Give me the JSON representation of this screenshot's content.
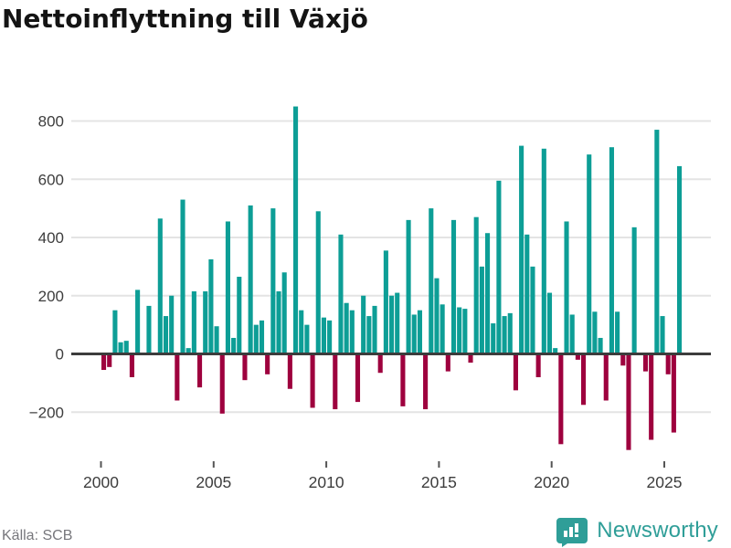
{
  "title": "Nettoinflyttning till Växjö",
  "footer": {
    "source": "Källa: SCB",
    "brand": "Newsworthy"
  },
  "colors": {
    "positive_bar": "#0d9e96",
    "negative_bar": "#9e013e",
    "zero_line": "#3c3c3c",
    "gridline": "#e4e4e4",
    "axis_text": "#3d3d3d",
    "title_text": "#141414",
    "source_text": "#77777c",
    "brand_teal": "#2f9e98"
  },
  "chart_data": {
    "type": "bar",
    "title": "Nettoinflyttning till Växjö",
    "xlabel": "",
    "ylabel": "",
    "grid": true,
    "legend": "none",
    "y_ticks": [
      800,
      600,
      400,
      200,
      0,
      -200
    ],
    "ylim": [
      -350,
      880
    ],
    "x_tick_labels": [
      "2000",
      "2005",
      "2010",
      "2015",
      "2020",
      "2025"
    ],
    "categories": [
      "2000 Q1",
      "2000 Q2",
      "2000 Q3",
      "2000 Q4",
      "2001 Q1",
      "2001 Q2",
      "2001 Q3",
      "2001 Q4",
      "2002 Q1",
      "2002 Q2",
      "2002 Q3",
      "2002 Q4",
      "2003 Q1",
      "2003 Q2",
      "2003 Q3",
      "2003 Q4",
      "2004 Q1",
      "2004 Q2",
      "2004 Q3",
      "2004 Q4",
      "2005 Q1",
      "2005 Q2",
      "2005 Q3",
      "2005 Q4",
      "2006 Q1",
      "2006 Q2",
      "2006 Q3",
      "2006 Q4",
      "2007 Q1",
      "2007 Q2",
      "2007 Q3",
      "2007 Q4",
      "2008 Q1",
      "2008 Q2",
      "2008 Q3",
      "2008 Q4",
      "2009 Q1",
      "2009 Q2",
      "2009 Q3",
      "2009 Q4",
      "2010 Q1",
      "2010 Q2",
      "2010 Q3",
      "2010 Q4",
      "2011 Q1",
      "2011 Q2",
      "2011 Q3",
      "2011 Q4",
      "2012 Q1",
      "2012 Q2",
      "2012 Q3",
      "2012 Q4",
      "2013 Q1",
      "2013 Q2",
      "2013 Q3",
      "2013 Q4",
      "2014 Q1",
      "2014 Q2",
      "2014 Q3",
      "2014 Q4",
      "2015 Q1",
      "2015 Q2",
      "2015 Q3",
      "2015 Q4",
      "2016 Q1",
      "2016 Q2",
      "2016 Q3",
      "2016 Q4",
      "2017 Q1",
      "2017 Q2",
      "2017 Q3",
      "2017 Q4",
      "2018 Q1",
      "2018 Q2",
      "2018 Q3",
      "2018 Q4",
      "2019 Q1",
      "2019 Q2",
      "2019 Q3",
      "2019 Q4",
      "2020 Q1",
      "2020 Q2",
      "2020 Q3",
      "2020 Q4",
      "2021 Q1",
      "2021 Q2",
      "2021 Q3",
      "2021 Q4",
      "2022 Q1",
      "2022 Q2",
      "2022 Q3",
      "2022 Q4",
      "2023 Q1",
      "2023 Q2",
      "2023 Q3",
      "2023 Q4",
      "2024 Q1",
      "2024 Q2",
      "2024 Q3",
      "2024 Q4",
      "2025 Q1",
      "2025 Q2",
      "2025 Q3"
    ],
    "values": [
      -55,
      -45,
      150,
      40,
      45,
      -80,
      220,
      0,
      165,
      0,
      465,
      130,
      200,
      -160,
      530,
      20,
      215,
      -115,
      215,
      325,
      95,
      -205,
      455,
      55,
      265,
      -90,
      510,
      100,
      115,
      -70,
      500,
      215,
      280,
      -120,
      850,
      150,
      100,
      -185,
      490,
      125,
      115,
      -190,
      410,
      175,
      150,
      -165,
      200,
      130,
      165,
      -65,
      355,
      200,
      210,
      -180,
      460,
      135,
      150,
      -190,
      500,
      260,
      170,
      -60,
      460,
      160,
      155,
      -30,
      470,
      300,
      415,
      105,
      595,
      130,
      140,
      -125,
      715,
      410,
      300,
      -80,
      705,
      210,
      20,
      -310,
      455,
      135,
      -20,
      -175,
      685,
      145,
      55,
      -160,
      710,
      145,
      -40,
      -330,
      435,
      0,
      -60,
      -295,
      770,
      130,
      -70,
      -270,
      645
    ]
  }
}
